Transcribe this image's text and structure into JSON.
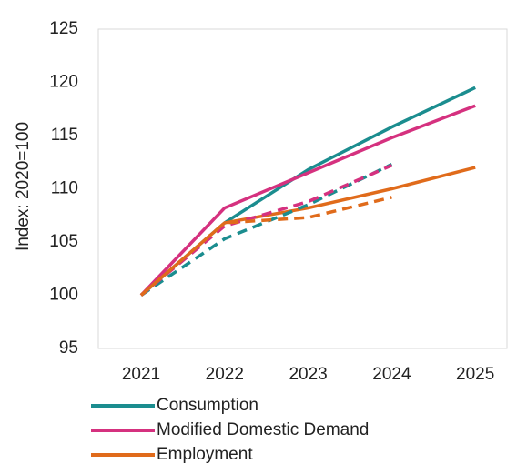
{
  "chart_data": {
    "type": "line",
    "y_label": "Index: 2020=100",
    "categories": [
      "2021",
      "2022",
      "2023",
      "2024",
      "2025"
    ],
    "series": [
      {
        "name": "Consumption",
        "color": "#1b8d8f",
        "values": [
          100,
          106.8,
          111.8,
          115.8,
          119.5
        ]
      },
      {
        "name": "Modified Domestic Demand",
        "color": "#d5317f",
        "values": [
          100,
          108.2,
          111.5,
          114.8,
          117.8
        ]
      },
      {
        "name": "Employment",
        "color": "#e06b1b",
        "values": [
          100,
          106.8,
          108.2,
          110,
          112
        ]
      },
      {
        "color": "#1b8d8f",
        "dashed": true,
        "values": [
          100,
          105.3,
          108.5,
          112.3,
          null
        ]
      },
      {
        "color": "#d5317f",
        "dashed": true,
        "values": [
          100,
          106.5,
          108.8,
          112.2,
          null
        ]
      },
      {
        "color": "#e06b1b",
        "dashed": true,
        "values": [
          100,
          106.8,
          107.3,
          109.2,
          null
        ]
      }
    ],
    "ylim": [
      95,
      125
    ],
    "yticks": [
      95,
      100,
      105,
      110,
      115,
      120,
      125
    ],
    "grid": false,
    "legend": "bottom"
  }
}
